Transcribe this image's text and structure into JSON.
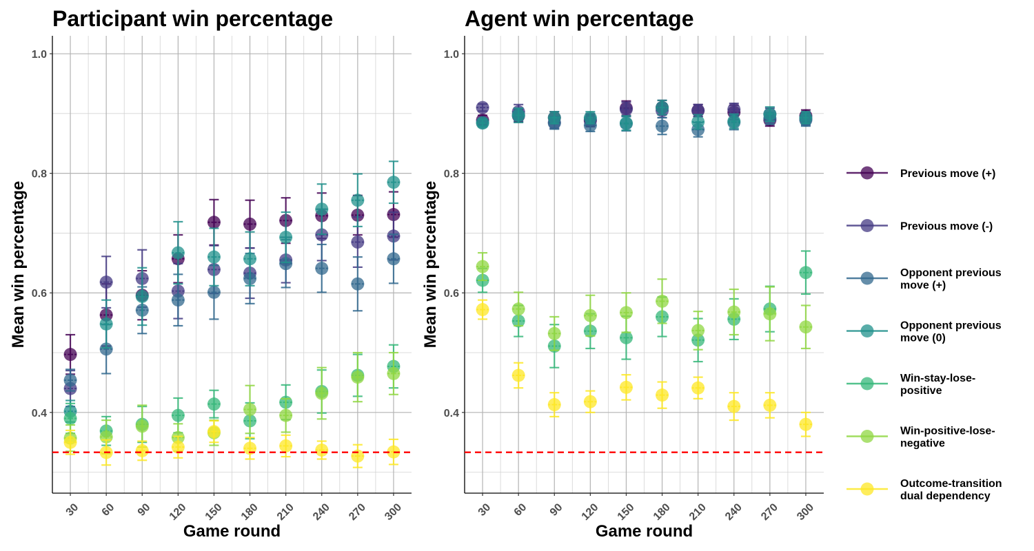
{
  "chart_data": [
    {
      "type": "scatter",
      "title": "Participant win percentage",
      "xlabel": "Game round",
      "ylabel": "Mean win percentage",
      "categories": [
        "30",
        "60",
        "90",
        "120",
        "150",
        "180",
        "210",
        "240",
        "270",
        "300"
      ],
      "ylim": [
        0.265,
        1.03
      ],
      "yticks": [
        0.4,
        0.6,
        0.8,
        1.0
      ],
      "ytick_labels": [
        "0.4",
        "0.6",
        "0.8",
        "1.0"
      ],
      "reference_line": {
        "y": 0.3333,
        "color": "#ff0000",
        "style": "dashed"
      },
      "grid": true,
      "series": [
        {
          "name": "Previous move (+)",
          "color": "#440154",
          "values": [
            0.497,
            0.563,
            0.596,
            0.657,
            0.718,
            0.715,
            0.721,
            0.729,
            0.73,
            0.731
          ],
          "errors": [
            0.033,
            0.052,
            0.041,
            0.04,
            0.038,
            0.04,
            0.038,
            0.038,
            0.033,
            0.038
          ]
        },
        {
          "name": "Previous move (-)",
          "color": "#443983",
          "values": [
            0.44,
            0.618,
            0.624,
            0.603,
            0.639,
            0.633,
            0.655,
            0.697,
            0.685,
            0.695
          ],
          "errors": [
            0.03,
            0.043,
            0.048,
            0.046,
            0.04,
            0.042,
            0.038,
            0.043,
            0.042,
            0.04
          ]
        },
        {
          "name": "Opponent previous move (+)",
          "color": "#31688e",
          "values": [
            0.454,
            0.506,
            0.571,
            0.588,
            0.601,
            0.624,
            0.649,
            0.641,
            0.615,
            0.657
          ],
          "errors": [
            0.018,
            0.041,
            0.039,
            0.043,
            0.045,
            0.042,
            0.04,
            0.04,
            0.045,
            0.041
          ]
        },
        {
          "name": "Opponent previous move (0)",
          "color": "#21918c",
          "values": [
            0.402,
            0.548,
            0.594,
            0.667,
            0.66,
            0.657,
            0.693,
            0.74,
            0.755,
            0.785
          ],
          "errors": [
            0.018,
            0.04,
            0.048,
            0.052,
            0.048,
            0.045,
            0.042,
            0.042,
            0.044,
            0.035
          ]
        },
        {
          "name": "Win-stay-lose-positive",
          "color": "#35b779",
          "values": [
            0.39,
            0.369,
            0.38,
            0.395,
            0.414,
            0.386,
            0.417,
            0.435,
            0.462,
            0.477
          ],
          "errors": [
            0.025,
            0.024,
            0.03,
            0.029,
            0.023,
            0.03,
            0.029,
            0.036,
            0.035,
            0.036
          ]
        },
        {
          "name": "Win-positive-lose-negative",
          "color": "#90d743",
          "values": [
            0.357,
            0.359,
            0.377,
            0.358,
            0.366,
            0.405,
            0.395,
            0.432,
            0.459,
            0.465
          ],
          "errors": [
            0.022,
            0.028,
            0.035,
            0.023,
            0.021,
            0.04,
            0.028,
            0.043,
            0.041,
            0.035
          ]
        },
        {
          "name": "Outcome-transition dual dependency",
          "color": "#fde725",
          "values": [
            0.35,
            0.333,
            0.336,
            0.342,
            0.368,
            0.34,
            0.344,
            0.337,
            0.327,
            0.334
          ],
          "errors": [
            0.02,
            0.021,
            0.016,
            0.018,
            0.018,
            0.018,
            0.018,
            0.015,
            0.019,
            0.021
          ]
        }
      ]
    },
    {
      "type": "scatter",
      "title": "Agent win percentage",
      "xlabel": "Game round",
      "ylabel": "Mean win percentage",
      "categories": [
        "30",
        "60",
        "90",
        "120",
        "150",
        "180",
        "210",
        "240",
        "270",
        "300"
      ],
      "ylim": [
        0.265,
        1.03
      ],
      "yticks": [
        0.4,
        0.6,
        0.8,
        1.0
      ],
      "ytick_labels": [
        "0.4",
        "0.6",
        "0.8",
        "1.0"
      ],
      "reference_line": {
        "y": 0.3333,
        "color": "#ff0000",
        "style": "dashed"
      },
      "grid": true,
      "series": [
        {
          "name": "Previous move (+)",
          "color": "#440154",
          "values": [
            0.889,
            0.896,
            0.893,
            0.888,
            0.909,
            0.91,
            0.905,
            0.902,
            0.889,
            0.896
          ],
          "errors": [
            0.008,
            0.01,
            0.01,
            0.01,
            0.012,
            0.012,
            0.01,
            0.012,
            0.01,
            0.01
          ]
        },
        {
          "name": "Previous move (-)",
          "color": "#443983",
          "values": [
            0.91,
            0.903,
            0.885,
            0.89,
            0.907,
            0.905,
            0.905,
            0.907,
            0.899,
            0.891
          ],
          "errors": [
            0.006,
            0.012,
            0.01,
            0.01,
            0.012,
            0.012,
            0.01,
            0.01,
            0.01,
            0.01
          ]
        },
        {
          "name": "Opponent previous move (+)",
          "color": "#31688e",
          "values": [
            0.885,
            0.898,
            0.884,
            0.88,
            0.883,
            0.879,
            0.873,
            0.885,
            0.892,
            0.889
          ],
          "errors": [
            0.006,
            0.01,
            0.01,
            0.01,
            0.012,
            0.014,
            0.012,
            0.012,
            0.01,
            0.01
          ]
        },
        {
          "name": "Opponent previous move (0)",
          "color": "#21918c",
          "values": [
            0.884,
            0.897,
            0.893,
            0.893,
            0.884,
            0.91,
            0.886,
            0.887,
            0.899,
            0.893
          ],
          "errors": [
            0.006,
            0.012,
            0.01,
            0.01,
            0.012,
            0.012,
            0.012,
            0.012,
            0.012,
            0.01
          ]
        },
        {
          "name": "Win-stay-lose-positive",
          "color": "#35b779",
          "values": [
            0.621,
            0.553,
            0.511,
            0.536,
            0.525,
            0.56,
            0.521,
            0.556,
            0.573,
            0.634
          ],
          "errors": [
            0.02,
            0.026,
            0.036,
            0.029,
            0.036,
            0.033,
            0.036,
            0.034,
            0.038,
            0.036
          ]
        },
        {
          "name": "Win-positive-lose-negative",
          "color": "#90d743",
          "values": [
            0.644,
            0.573,
            0.532,
            0.562,
            0.567,
            0.586,
            0.537,
            0.568,
            0.565,
            0.543
          ],
          "errors": [
            0.023,
            0.028,
            0.028,
            0.034,
            0.033,
            0.037,
            0.032,
            0.038,
            0.045,
            0.036
          ]
        },
        {
          "name": "Outcome-transition dual dependency",
          "color": "#fde725",
          "values": [
            0.572,
            0.462,
            0.413,
            0.418,
            0.442,
            0.429,
            0.441,
            0.41,
            0.412,
            0.38
          ],
          "errors": [
            0.016,
            0.021,
            0.02,
            0.018,
            0.021,
            0.022,
            0.018,
            0.023,
            0.021,
            0.02
          ]
        }
      ]
    }
  ],
  "legend": {
    "placement": "right",
    "items": [
      {
        "lines": [
          "Previous move (+)"
        ],
        "color": "#440154"
      },
      {
        "lines": [
          "Previous move (-)"
        ],
        "color": "#443983"
      },
      {
        "lines": [
          "Opponent previous",
          "move (+)"
        ],
        "color": "#31688e"
      },
      {
        "lines": [
          "Opponent previous",
          "move (0)"
        ],
        "color": "#21918c"
      },
      {
        "lines": [
          "Win-stay-lose-",
          "positive"
        ],
        "color": "#35b779"
      },
      {
        "lines": [
          "Win-positive-lose-",
          "negative"
        ],
        "color": "#90d743"
      },
      {
        "lines": [
          "Outcome-transition",
          "dual dependency"
        ],
        "color": "#fde725"
      }
    ]
  }
}
